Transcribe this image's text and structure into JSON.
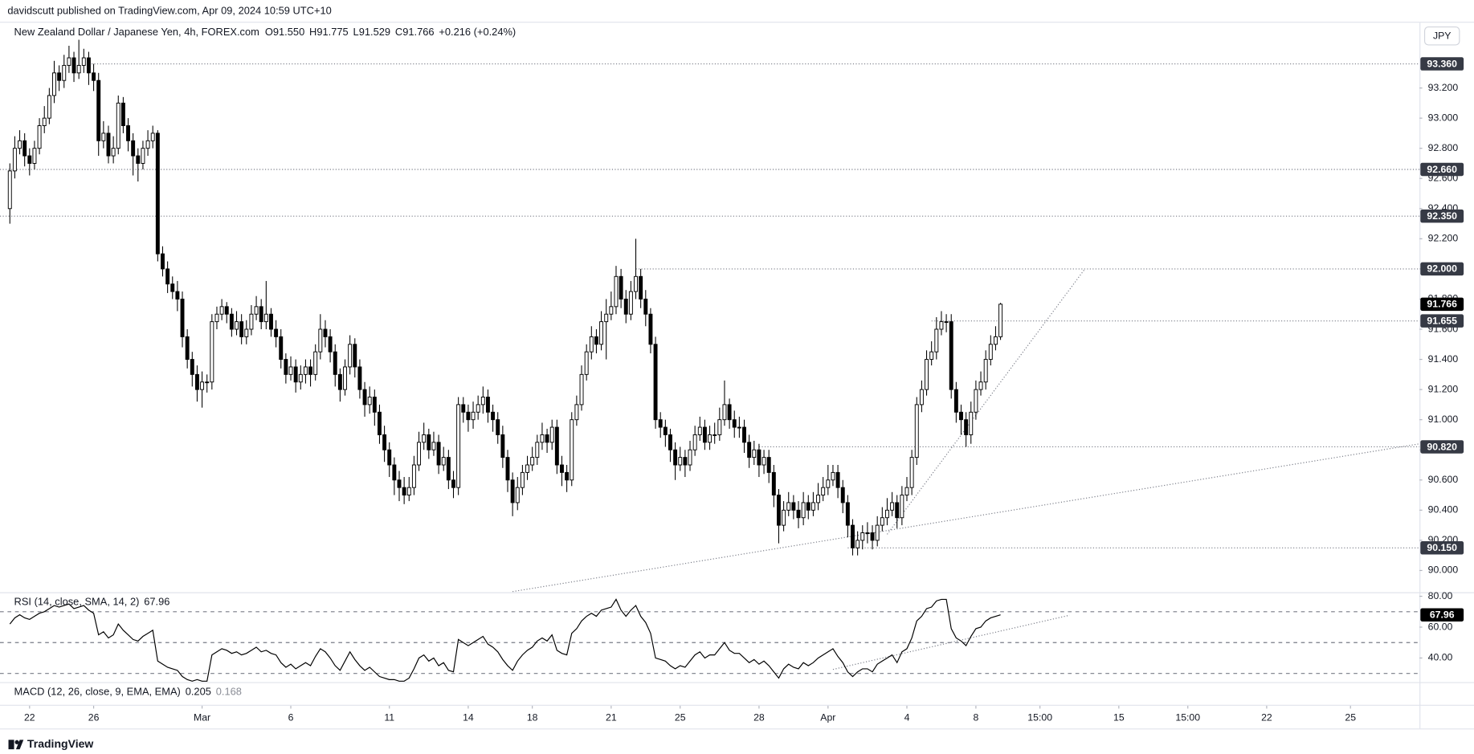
{
  "header": {
    "published": "davidscutt published on TradingView.com, Apr 09, 2024 10:59 UTC+10",
    "symbol": "New Zealand Dollar / Japanese Yen, 4h, FOREX.com",
    "ohlc": [
      "O91.550",
      "H91.775",
      "L91.529",
      "C91.766",
      "+0.216 (+0.24%)"
    ],
    "currency": "JPY",
    "brand": "TradingView"
  },
  "chart_data": {
    "type": "candlestick",
    "open": [
      92.4,
      92.65,
      92.8,
      92.85,
      92.75,
      92.7,
      92.8,
      92.95,
      93.0,
      93.15,
      93.3,
      93.25,
      93.35,
      93.4,
      93.3,
      93.35,
      93.4,
      93.3,
      93.25,
      92.85,
      92.9,
      92.75,
      92.8,
      93.1,
      92.95,
      92.85,
      92.75,
      92.7,
      92.8,
      92.85,
      92.9,
      92.1,
      92.0,
      91.9,
      91.85,
      91.8,
      91.55,
      91.4,
      91.3,
      91.2,
      91.25,
      91.25,
      91.65,
      91.7,
      91.75,
      91.7,
      91.6,
      91.65,
      91.55,
      91.6,
      91.7,
      91.75,
      91.65,
      91.7,
      91.6,
      91.55,
      91.4,
      91.3,
      91.35,
      91.25,
      91.3,
      91.35,
      91.3,
      91.45,
      91.6,
      91.55,
      91.45,
      91.3,
      91.2,
      91.35,
      91.5,
      91.35,
      91.2,
      91.1,
      91.15,
      91.05,
      90.9,
      90.8,
      90.7,
      90.6,
      90.55,
      90.5,
      90.55,
      90.7,
      90.85,
      90.9,
      90.8,
      90.85,
      90.7,
      90.75,
      90.6,
      90.55,
      91.1,
      91.05,
      91.0,
      91.05,
      91.1,
      91.15,
      91.05,
      91.0,
      90.9,
      90.75,
      90.6,
      90.45,
      90.55,
      90.65,
      90.7,
      90.75,
      90.85,
      90.9,
      90.85,
      90.95,
      90.7,
      90.65,
      90.6,
      91.0,
      91.1,
      91.3,
      91.45,
      91.55,
      91.5,
      91.65,
      91.7,
      91.75,
      91.95,
      91.8,
      91.7,
      91.85,
      91.95,
      91.8,
      91.7,
      91.5,
      91.0,
      90.95,
      90.9,
      90.8,
      90.7,
      90.75,
      90.7,
      90.8,
      90.9,
      90.95,
      90.85,
      90.9,
      90.9,
      91.0,
      91.1,
      91.0,
      90.95,
      90.95,
      90.85,
      90.75,
      90.8,
      90.7,
      90.75,
      90.65,
      90.5,
      90.3,
      90.4,
      90.45,
      90.4,
      90.35,
      90.45,
      90.4,
      90.45,
      90.5,
      90.55,
      90.6,
      90.65,
      90.55,
      90.45,
      90.3,
      90.15,
      90.2,
      90.25,
      90.25,
      90.2,
      90.3,
      90.35,
      90.4,
      90.45,
      90.35,
      90.5,
      90.55,
      90.75,
      91.1,
      91.2,
      91.4,
      91.45,
      91.6,
      91.65,
      91.65,
      91.2,
      91.05,
      91.0,
      90.9,
      91.05,
      91.2,
      91.25,
      91.4,
      91.5,
      91.55
    ],
    "high": [
      92.7,
      92.88,
      92.92,
      92.9,
      92.8,
      92.85,
      93.0,
      93.08,
      93.2,
      93.38,
      93.35,
      93.42,
      93.48,
      93.44,
      93.52,
      93.46,
      93.44,
      93.36,
      93.3,
      92.98,
      92.95,
      92.88,
      93.15,
      93.14,
      93.0,
      92.9,
      92.8,
      92.85,
      92.92,
      92.95,
      92.92,
      92.15,
      92.05,
      91.95,
      91.92,
      91.85,
      91.6,
      91.45,
      91.36,
      91.32,
      91.3,
      91.7,
      91.75,
      91.8,
      91.78,
      91.74,
      91.72,
      91.7,
      91.66,
      91.76,
      91.82,
      91.8,
      91.92,
      91.74,
      91.66,
      91.6,
      91.44,
      91.42,
      91.4,
      91.36,
      91.4,
      91.4,
      91.5,
      91.7,
      91.66,
      91.6,
      91.5,
      91.34,
      91.4,
      91.56,
      91.54,
      91.4,
      91.25,
      91.22,
      91.2,
      91.1,
      90.96,
      90.85,
      90.75,
      90.66,
      90.62,
      90.62,
      90.76,
      90.92,
      90.98,
      90.94,
      90.92,
      90.9,
      90.82,
      90.8,
      90.66,
      91.15,
      91.15,
      91.1,
      91.12,
      91.16,
      91.22,
      91.2,
      91.1,
      91.05,
      90.96,
      90.8,
      90.65,
      90.62,
      90.7,
      90.76,
      90.82,
      90.9,
      90.98,
      90.94,
      91.0,
      91.0,
      90.76,
      90.7,
      91.05,
      91.16,
      91.36,
      91.5,
      91.62,
      91.6,
      91.72,
      91.8,
      91.85,
      92.02,
      92.0,
      91.86,
      91.92,
      92.2,
      92.0,
      91.86,
      91.74,
      91.55,
      91.05,
      91.0,
      90.94,
      90.85,
      90.82,
      90.8,
      90.86,
      90.96,
      91.02,
      91.0,
      90.96,
      90.98,
      91.08,
      91.26,
      91.14,
      91.06,
      91.02,
      91.0,
      90.9,
      90.86,
      90.84,
      90.8,
      90.8,
      90.7,
      90.54,
      90.46,
      90.52,
      90.5,
      90.46,
      90.52,
      90.5,
      90.52,
      90.58,
      90.62,
      90.7,
      90.7,
      90.7,
      90.6,
      90.5,
      90.34,
      90.26,
      90.3,
      90.32,
      90.3,
      90.36,
      90.42,
      90.48,
      90.52,
      90.5,
      90.56,
      90.62,
      90.8,
      91.15,
      91.26,
      91.46,
      91.52,
      91.68,
      91.72,
      91.7,
      91.7,
      91.25,
      91.1,
      91.05,
      91.12,
      91.26,
      91.32,
      91.46,
      91.56,
      91.62,
      91.775
    ],
    "low": [
      92.3,
      92.6,
      92.76,
      92.68,
      92.62,
      92.66,
      92.76,
      92.9,
      92.96,
      93.1,
      93.18,
      93.2,
      93.3,
      93.24,
      93.26,
      93.3,
      93.22,
      93.18,
      92.75,
      92.8,
      92.7,
      92.7,
      92.76,
      92.9,
      92.78,
      92.62,
      92.58,
      92.66,
      92.75,
      92.8,
      92.05,
      91.95,
      91.84,
      91.8,
      91.72,
      91.48,
      91.34,
      91.22,
      91.12,
      91.08,
      91.18,
      91.2,
      91.6,
      91.66,
      91.64,
      91.55,
      91.56,
      91.5,
      91.5,
      91.56,
      91.66,
      91.6,
      91.6,
      91.55,
      91.48,
      91.34,
      91.24,
      91.26,
      91.18,
      91.2,
      91.24,
      91.22,
      91.26,
      91.4,
      91.48,
      91.38,
      91.22,
      91.12,
      91.16,
      91.3,
      91.28,
      91.14,
      91.02,
      91.04,
      90.96,
      90.84,
      90.72,
      90.62,
      90.5,
      90.46,
      90.44,
      90.46,
      90.5,
      90.66,
      90.8,
      90.74,
      90.76,
      90.64,
      90.66,
      90.54,
      90.48,
      90.5,
      90.98,
      90.92,
      90.94,
      91.0,
      91.04,
      90.98,
      90.92,
      90.84,
      90.68,
      90.52,
      90.36,
      90.4,
      90.5,
      90.6,
      90.66,
      90.7,
      90.8,
      90.78,
      90.8,
      90.64,
      90.56,
      90.52,
      90.56,
      90.96,
      91.06,
      91.26,
      91.4,
      91.44,
      91.46,
      91.4,
      91.66,
      91.7,
      91.74,
      91.64,
      91.66,
      91.8,
      91.74,
      91.62,
      91.44,
      90.94,
      90.88,
      90.82,
      90.72,
      90.6,
      90.66,
      90.62,
      90.66,
      90.76,
      90.86,
      90.8,
      90.8,
      90.84,
      90.86,
      90.96,
      90.94,
      90.88,
      90.88,
      90.78,
      90.68,
      90.7,
      90.62,
      90.64,
      90.58,
      90.42,
      90.18,
      90.26,
      90.36,
      90.34,
      90.28,
      90.3,
      90.34,
      90.36,
      90.4,
      90.46,
      90.5,
      90.56,
      90.48,
      90.38,
      90.22,
      90.1,
      90.1,
      90.14,
      90.18,
      90.14,
      90.16,
      90.26,
      90.3,
      90.36,
      90.28,
      90.3,
      90.46,
      90.5,
      90.7,
      91.05,
      91.16,
      91.36,
      91.4,
      91.56,
      91.58,
      91.14,
      90.98,
      90.9,
      90.82,
      90.84,
      91.0,
      91.16,
      91.2,
      91.36,
      91.46,
      91.529
    ],
    "close": [
      92.65,
      92.8,
      92.85,
      92.75,
      92.7,
      92.8,
      92.95,
      93.0,
      93.15,
      93.3,
      93.25,
      93.35,
      93.4,
      93.3,
      93.35,
      93.4,
      93.3,
      93.25,
      92.85,
      92.9,
      92.75,
      92.8,
      93.1,
      92.95,
      92.85,
      92.75,
      92.7,
      92.8,
      92.85,
      92.9,
      92.1,
      92.0,
      91.9,
      91.85,
      91.8,
      91.55,
      91.4,
      91.3,
      91.2,
      91.25,
      91.25,
      91.65,
      91.7,
      91.75,
      91.7,
      91.6,
      91.65,
      91.55,
      91.6,
      91.7,
      91.75,
      91.65,
      91.7,
      91.6,
      91.55,
      91.4,
      91.3,
      91.35,
      91.25,
      91.3,
      91.35,
      91.3,
      91.45,
      91.6,
      91.55,
      91.45,
      91.3,
      91.2,
      91.35,
      91.5,
      91.35,
      91.2,
      91.1,
      91.15,
      91.05,
      90.9,
      90.8,
      90.7,
      90.6,
      90.55,
      90.5,
      90.55,
      90.7,
      90.85,
      90.9,
      90.8,
      90.85,
      90.7,
      90.75,
      90.6,
      90.55,
      91.1,
      91.05,
      91.0,
      91.05,
      91.1,
      91.15,
      91.05,
      91.0,
      90.9,
      90.75,
      90.6,
      90.45,
      90.55,
      90.65,
      90.7,
      90.75,
      90.85,
      90.9,
      90.85,
      90.95,
      90.7,
      90.65,
      90.6,
      91.0,
      91.1,
      91.3,
      91.45,
      91.55,
      91.5,
      91.65,
      91.7,
      91.75,
      91.95,
      91.8,
      91.7,
      91.85,
      91.95,
      91.8,
      91.7,
      91.5,
      91.0,
      90.95,
      90.9,
      90.8,
      90.7,
      90.75,
      90.7,
      90.8,
      90.9,
      90.95,
      90.85,
      90.9,
      90.9,
      91.0,
      91.1,
      91.0,
      90.95,
      90.95,
      90.85,
      90.75,
      90.8,
      90.7,
      90.75,
      90.65,
      90.5,
      90.3,
      90.4,
      90.45,
      90.4,
      90.35,
      90.45,
      90.4,
      90.45,
      90.5,
      90.55,
      90.6,
      90.65,
      90.55,
      90.45,
      90.3,
      90.15,
      90.2,
      90.25,
      90.25,
      90.2,
      90.3,
      90.35,
      90.4,
      90.45,
      90.35,
      90.5,
      90.55,
      90.75,
      91.1,
      91.2,
      91.4,
      91.45,
      91.6,
      91.65,
      91.65,
      91.2,
      91.05,
      91.0,
      90.9,
      91.05,
      91.2,
      91.25,
      91.4,
      91.5,
      91.55,
      91.766
    ],
    "up_color": "#ffffff",
    "down_color": "#000000",
    "wick_color": "#000000",
    "xlim": [
      -2,
      286
    ],
    "xticks": [
      {
        "value": 4,
        "label": "22"
      },
      {
        "value": 17,
        "label": "26"
      },
      {
        "value": 39,
        "label": "Mar"
      },
      {
        "value": 57,
        "label": "6"
      },
      {
        "value": 77,
        "label": "11"
      },
      {
        "value": 93,
        "label": "14"
      },
      {
        "value": 106,
        "label": "18"
      },
      {
        "value": 122,
        "label": "21"
      },
      {
        "value": 136,
        "label": "25"
      },
      {
        "value": 152,
        "label": "28"
      },
      {
        "value": 166,
        "label": "Apr"
      },
      {
        "value": 182,
        "label": "4"
      },
      {
        "value": 196,
        "label": "8"
      },
      {
        "value": 209,
        "label": "15:00"
      },
      {
        "value": 225,
        "label": "15"
      },
      {
        "value": 239,
        "label": "15:00"
      },
      {
        "value": 255,
        "label": "22"
      },
      {
        "value": 272,
        "label": "25"
      }
    ],
    "ylim": [
      89.862,
      93.633
    ],
    "yticks": [
      {
        "value": 90.0,
        "label": "90.000"
      },
      {
        "value": 90.2,
        "label": "90.200"
      },
      {
        "value": 90.4,
        "label": "90.400"
      },
      {
        "value": 90.6,
        "label": "90.600"
      },
      {
        "value": 90.8,
        "label": "90.800"
      },
      {
        "value": 91.0,
        "label": "91.000"
      },
      {
        "value": 91.2,
        "label": "91.200"
      },
      {
        "value": 91.4,
        "label": "91.400"
      },
      {
        "value": 91.6,
        "label": "91.600"
      },
      {
        "value": 91.8,
        "label": "91.800"
      },
      {
        "value": 92.0,
        "label": "92.000"
      },
      {
        "value": 92.2,
        "label": "92.200"
      },
      {
        "value": 92.4,
        "label": "92.400"
      },
      {
        "value": 92.6,
        "label": "92.600"
      },
      {
        "value": 92.8,
        "label": "92.800"
      },
      {
        "value": 93.0,
        "label": "93.000"
      },
      {
        "value": 93.2,
        "label": "93.200"
      }
    ],
    "grid": false,
    "levels": [
      {
        "value": 93.36,
        "label": "93.360",
        "from": 16
      },
      {
        "value": 92.66,
        "label": "92.660",
        "from": -2
      },
      {
        "value": 92.35,
        "label": "92.350",
        "from": -2
      },
      {
        "value": 92.0,
        "label": "92.000",
        "from": 127
      },
      {
        "value": 91.655,
        "label": "91.655",
        "from": 187
      },
      {
        "value": 90.82,
        "label": "90.820",
        "from": 152
      },
      {
        "value": 90.15,
        "label": "90.150",
        "from": 170
      }
    ],
    "trendlines": [
      {
        "x": [
          102,
          286
        ],
        "y": [
          89.86,
          90.84
        ]
      },
      {
        "x": [
          178,
          218
        ],
        "y": [
          90.24,
          91.995
        ]
      }
    ],
    "rsi": {
      "title": "RSI (14, close, SMA, 14, 2)",
      "values": [
        62,
        66,
        68,
        66,
        65,
        67,
        69,
        70,
        72,
        74,
        73,
        74,
        75,
        72,
        73,
        74,
        71,
        69,
        55,
        57,
        53,
        55,
        62,
        58,
        55,
        52,
        51,
        54,
        56,
        58,
        38,
        36,
        34,
        33,
        32,
        28,
        26,
        25,
        26,
        25,
        25,
        42,
        44,
        46,
        45,
        43,
        44,
        42,
        43,
        45,
        47,
        44,
        45,
        43,
        42,
        37,
        34,
        36,
        33,
        35,
        37,
        35,
        41,
        46,
        44,
        40,
        35,
        32,
        38,
        44,
        39,
        35,
        32,
        34,
        31,
        28,
        27,
        26,
        26,
        25,
        25,
        27,
        33,
        40,
        42,
        38,
        40,
        35,
        37,
        32,
        31,
        52,
        50,
        48,
        50,
        52,
        54,
        49,
        47,
        44,
        39,
        35,
        32,
        38,
        42,
        45,
        47,
        51,
        53,
        51,
        55,
        45,
        43,
        42,
        56,
        59,
        64,
        67,
        69,
        67,
        71,
        72,
        73,
        78,
        71,
        67,
        71,
        74,
        67,
        63,
        56,
        40,
        39,
        38,
        35,
        33,
        35,
        34,
        38,
        42,
        44,
        40,
        42,
        42,
        46,
        50,
        45,
        43,
        43,
        40,
        37,
        39,
        36,
        38,
        35,
        31,
        27,
        33,
        36,
        34,
        33,
        37,
        35,
        37,
        40,
        42,
        44,
        46,
        41,
        37,
        31,
        28,
        31,
        33,
        33,
        31,
        36,
        38,
        40,
        42,
        37,
        44,
        46,
        53,
        64,
        67,
        72,
        73,
        77,
        78,
        78,
        59,
        53,
        51,
        48,
        54,
        59,
        60,
        64,
        66,
        67,
        67.96
      ],
      "color": "#000000",
      "ylim": [
        25,
        82
      ],
      "yticks": [
        {
          "value": 80,
          "label": "80.00"
        },
        {
          "value": 60,
          "label": "60.00"
        },
        {
          "value": 40,
          "label": "40.00"
        }
      ],
      "bands": [
        70,
        50,
        30
      ],
      "trendline": {
        "x": [
          167,
          215
        ],
        "y": [
          32.6,
          67.7
        ]
      }
    },
    "macd": {
      "title": "MACD (12, 26, close, 9, EMA, EMA)",
      "values": [
        0.205,
        0.168
      ]
    }
  }
}
